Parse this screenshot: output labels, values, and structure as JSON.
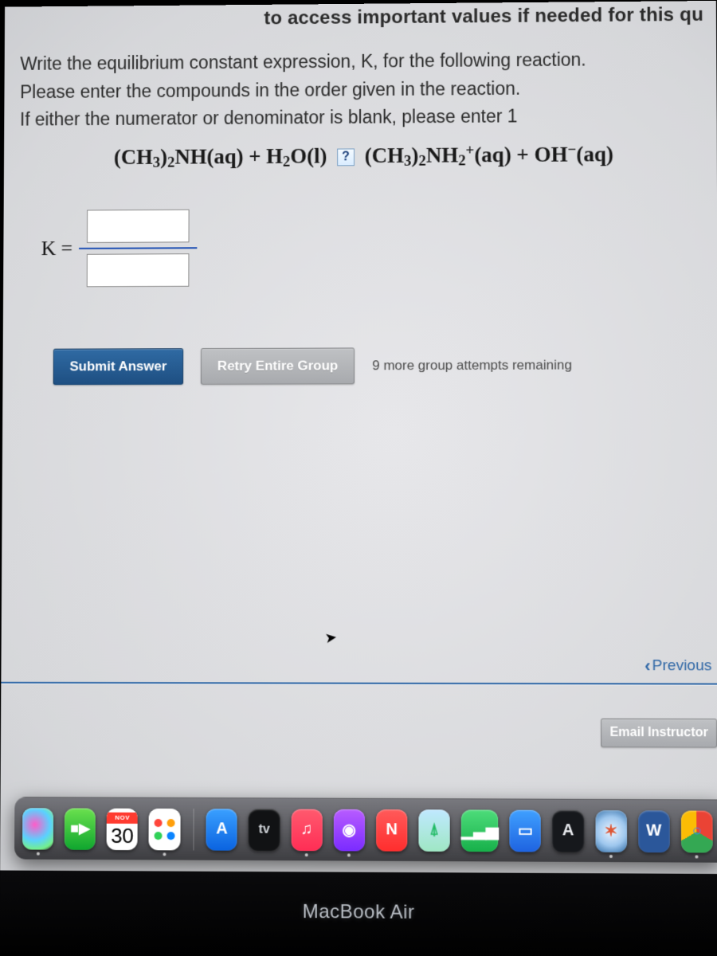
{
  "colors": {
    "primary_btn_top": "#2f6aa3",
    "primary_btn_bottom": "#1e4f82",
    "secondary_btn_top": "#bfc1c4",
    "secondary_btn_bottom": "#a8aaae",
    "link": "#2f67a6",
    "frac_bar": "#1e4fb3",
    "text": "#2b2b2b"
  },
  "header": {
    "hint_text": "to access important values if needed for this qu"
  },
  "question": {
    "line1": "Write the equilibrium constant expression, K, for the following reaction.",
    "line2": "Please enter the compounds in the order given in the reaction.",
    "line3": "If either the numerator or denominator is blank, please enter 1",
    "equation_html": "(CH<sub>3</sub>)<sub>2</sub>NH(aq) + H<sub>2</sub>O(l) <span class='q-icon' data-name='equilibrium-icon' data-interactable='true'>?</span> (CH<sub>3</sub>)<sub>2</sub>NH<sub>2</sub><sup>+</sup>(aq) + OH<sup>−</sup>(aq)",
    "k_label": "K ="
  },
  "inputs": {
    "numerator": "",
    "denominator": ""
  },
  "buttons": {
    "submit": "Submit Answer",
    "retry": "Retry Entire Group",
    "attempts": "9 more group attempts remaining",
    "previous": "Previous",
    "email": "Email Instructor"
  },
  "dock": {
    "calendar": {
      "month": "NOV",
      "day": "30"
    },
    "tv_label": "tv",
    "icons": [
      {
        "name": "siri-icon",
        "bg": "radial-gradient(circle at 40% 40%, #ff5cc8, #5ad1ff 50%, #74f08a 80%, #1b1b1f)",
        "glyph": ""
      },
      {
        "name": "facetime-icon",
        "bg": "linear-gradient(#6ae04e,#0fa62e)",
        "glyph": "■▶"
      },
      {
        "name": "reminders-icon",
        "bg": "#ffffff",
        "glyph": "",
        "fg": "#888"
      },
      {
        "name": "appstore-icon",
        "bg": "linear-gradient(#3aa0ff,#0a63e0)",
        "glyph": "A"
      },
      {
        "name": "tv-icon",
        "bg": "#111214",
        "glyph": "tv",
        "fg": "#cfd3d8"
      },
      {
        "name": "music-icon",
        "bg": "linear-gradient(#ff5a6e,#ff2d55)",
        "glyph": "♫"
      },
      {
        "name": "podcasts-icon",
        "bg": "linear-gradient(#b85cff,#7a2bff)",
        "glyph": "◉"
      },
      {
        "name": "news-icon",
        "bg": "linear-gradient(#ff5a5a,#ff2d2d)",
        "glyph": "N"
      },
      {
        "name": "maps-icon",
        "bg": "linear-gradient(#bfe8ff,#9fe7c4)",
        "glyph": "⍋",
        "fg": "#2b6"
      },
      {
        "name": "numbers-icon",
        "bg": "linear-gradient(#4ddc7a,#17b04a)",
        "glyph": "▁▃▅"
      },
      {
        "name": "keynote-icon",
        "bg": "linear-gradient(#3fa0ff,#1e63e0)",
        "glyph": "▭"
      },
      {
        "name": "font-icon",
        "bg": "#16181c",
        "glyph": "A",
        "fg": "#e8eaee"
      },
      {
        "name": "safari-icon",
        "bg": "radial-gradient(circle,#eaf4ff 0%,#9ec7ee 55%,#2f6aa3 100%)",
        "glyph": "✶",
        "fg": "#d53"
      },
      {
        "name": "word-icon",
        "bg": "#2b579a",
        "glyph": "W"
      },
      {
        "name": "chrome-icon",
        "bg": "conic-gradient(#ea4335 0 120deg,#34a853 120deg 240deg,#fbbc05 240deg 360deg)",
        "glyph": "○",
        "fg": "#4285f4"
      }
    ]
  },
  "laptop_label": "MacBook Air"
}
